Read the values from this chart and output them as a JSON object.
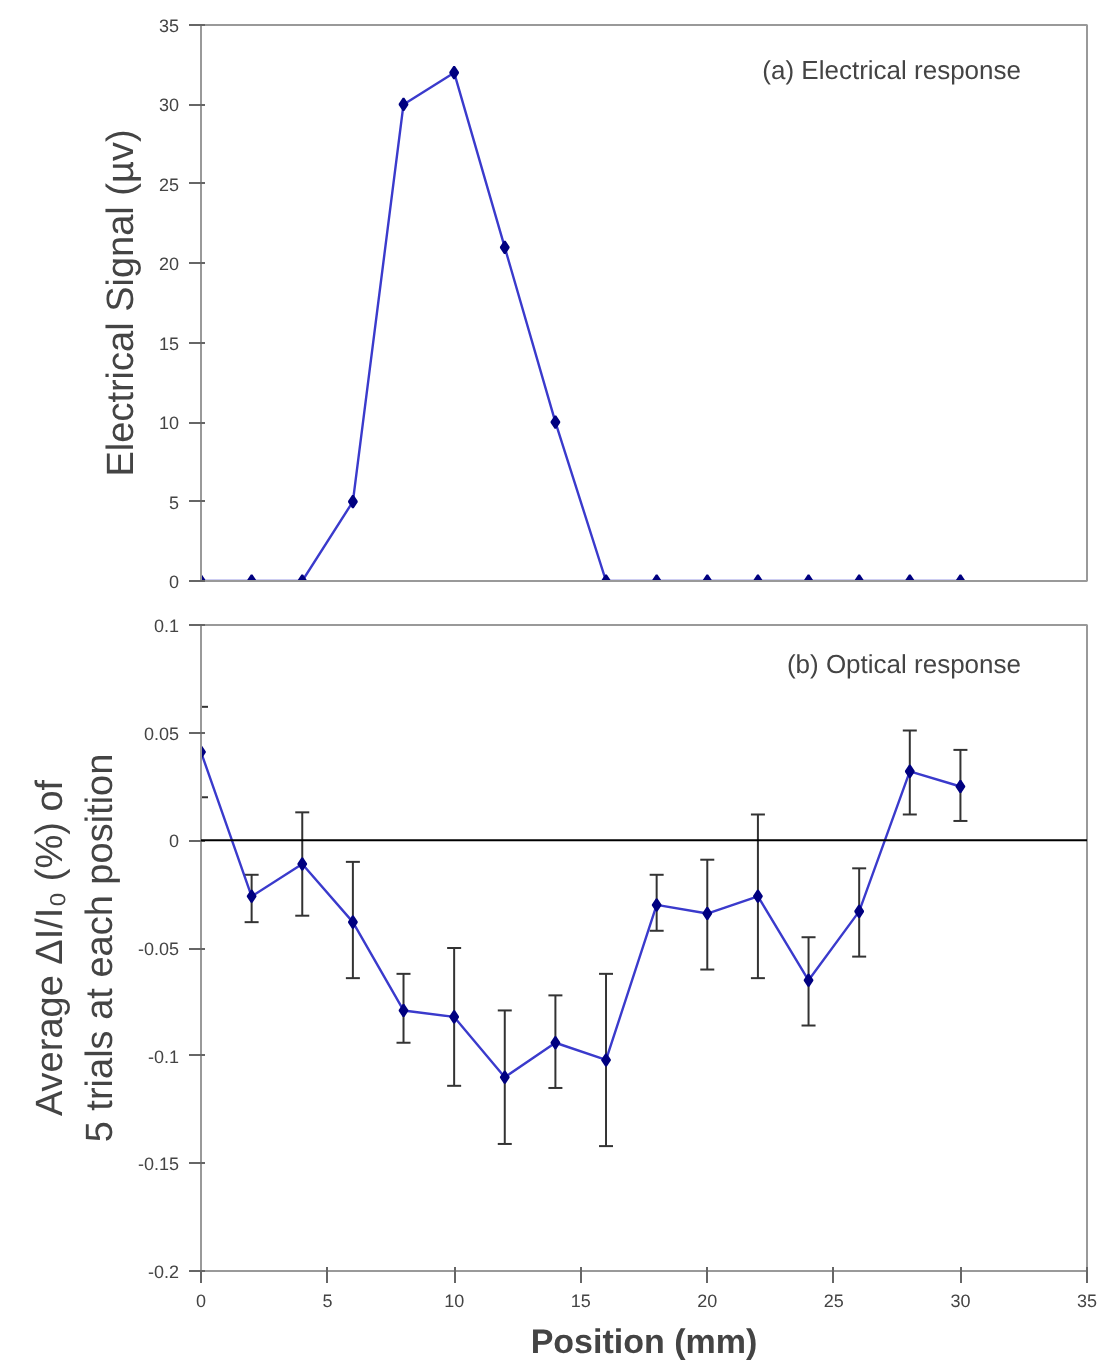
{
  "chart_data": [
    {
      "type": "line",
      "ylabel": "Electrical Signal (µv)",
      "annotations": [
        "(a) Electrical response"
      ],
      "x": [
        0,
        2,
        4,
        6,
        8,
        10,
        12,
        14,
        16,
        18,
        20,
        22,
        24,
        26,
        28,
        30
      ],
      "series": [
        {
          "color": "#3a3acc",
          "values": [
            0,
            0,
            0,
            5,
            30,
            32,
            21,
            10,
            0,
            0,
            0,
            0,
            0,
            0,
            0,
            0
          ]
        }
      ],
      "xlim": [
        0,
        35
      ],
      "ylim": [
        0,
        35
      ],
      "yticks": [
        0,
        5,
        10,
        15,
        20,
        25,
        30,
        35
      ],
      "tick_labels": "y",
      "marker": "diamond",
      "grid": false
    },
    {
      "type": "line",
      "xlabel": "Position (mm)",
      "ylabel": "Average ΔI/I₀ (%) of\n5 trials at each position",
      "annotations": [
        "(b) Optical response"
      ],
      "x": [
        0,
        2,
        4,
        6,
        8,
        10,
        12,
        14,
        16,
        18,
        20,
        22,
        24,
        26,
        28,
        30
      ],
      "series": [
        {
          "color": "#3a3acc",
          "values": [
            0.041,
            -0.026,
            -0.011,
            -0.038,
            -0.079,
            -0.082,
            -0.11,
            -0.094,
            -0.102,
            -0.03,
            -0.034,
            -0.026,
            -0.065,
            -0.033,
            0.032,
            0.025
          ],
          "errors": [
            [
              0.02,
              0.062
            ],
            [
              -0.038,
              -0.016
            ],
            [
              -0.035,
              0.013
            ],
            [
              -0.064,
              -0.01
            ],
            [
              -0.094,
              -0.062
            ],
            [
              -0.114,
              -0.05
            ],
            [
              -0.141,
              -0.079
            ],
            [
              -0.115,
              -0.072
            ],
            [
              -0.142,
              -0.062
            ],
            [
              -0.042,
              -0.016
            ],
            [
              -0.06,
              -0.009
            ],
            [
              -0.064,
              0.012
            ],
            [
              -0.086,
              -0.045
            ],
            [
              -0.054,
              -0.013
            ],
            [
              0.012,
              0.051
            ],
            [
              0.009,
              0.042
            ]
          ]
        }
      ],
      "xlim": [
        0,
        35
      ],
      "xticks": [
        0,
        5,
        10,
        15,
        20,
        25,
        30,
        35
      ],
      "ylim": [
        -0.2,
        0.1
      ],
      "yticks": [
        -0.2,
        -0.15,
        -0.1,
        -0.05,
        0,
        0.05,
        0.1
      ],
      "ref_lines": [
        {
          "axis": "y",
          "value": 0,
          "color": "#000000"
        }
      ],
      "marker": "diamond",
      "grid": false
    }
  ]
}
